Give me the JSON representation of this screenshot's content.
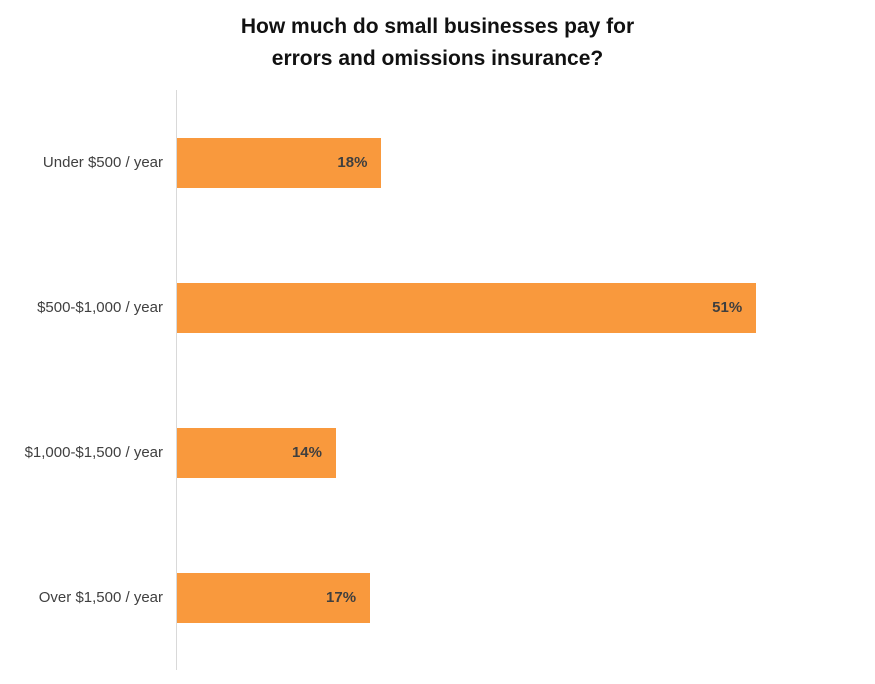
{
  "chart_data": {
    "type": "bar",
    "orientation": "horizontal",
    "title": "How much do small businesses pay for errors and omissions insurance?",
    "title_lines": [
      "How much do small businesses pay for",
      "errors and omissions insurance?"
    ],
    "categories": [
      "Under $500 / year",
      "$500-$1,000 / year",
      "$1,000-$1,500 / year",
      "Over $1,500 / year"
    ],
    "values": [
      18,
      51,
      14,
      17
    ],
    "value_labels": [
      "18%",
      "51%",
      "14%",
      "17%"
    ],
    "xlabel": "",
    "ylabel": "",
    "xlim": [
      0,
      56
    ],
    "grid": false,
    "legend": false,
    "bar_color": "#F9993D",
    "axis_line_color": "#d9d9d9",
    "value_label_position": "inside-end",
    "value_label_color": "#3f3f3f",
    "category_label_color": "#404040"
  }
}
